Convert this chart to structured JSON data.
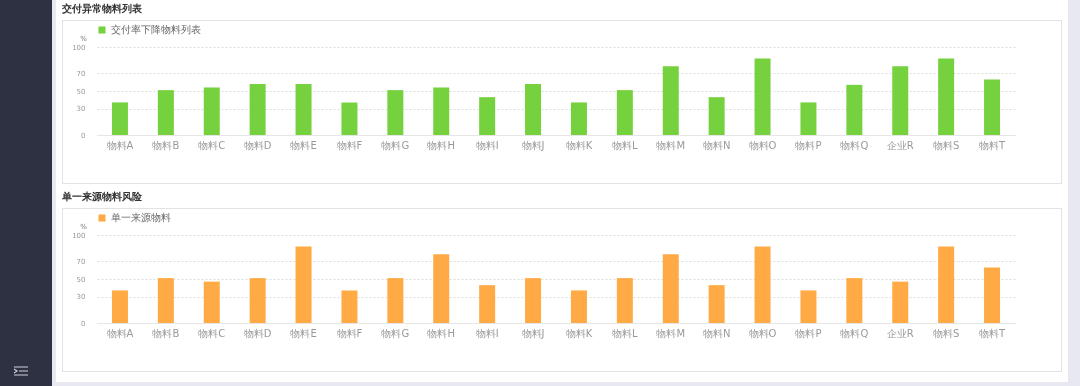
{
  "chart_data": [
    {
      "type": "bar",
      "title": "交付异常物料列表",
      "ylabel": "%",
      "categories": [
        "物料A",
        "物料B",
        "物料C",
        "物料D",
        "物料E",
        "物料F",
        "物料G",
        "物料H",
        "物料I",
        "物料J",
        "物料K",
        "物料L",
        "物料M",
        "物料N",
        "物料O",
        "物料P",
        "物料Q",
        "企业R",
        "物料S",
        "物料T"
      ],
      "series": [
        {
          "name": "交付率下降物料列表",
          "color": "#76d13e",
          "values": [
            37,
            51,
            54,
            58,
            58,
            37,
            51,
            54,
            43,
            58,
            37,
            51,
            78,
            43,
            87,
            37,
            57,
            78,
            87,
            63
          ]
        }
      ],
      "ylim": [
        0,
        100
      ],
      "yticks": [
        0,
        30,
        50,
        70,
        100
      ],
      "grid": "y",
      "legend": "top left"
    },
    {
      "type": "bar",
      "title": "单一来源物料风险",
      "ylabel": "%",
      "categories": [
        "物料A",
        "物料B",
        "物料C",
        "物料D",
        "物料E",
        "物料F",
        "物料G",
        "物料H",
        "物料I",
        "物料J",
        "物料K",
        "物料L",
        "物料M",
        "物料N",
        "物料O",
        "物料P",
        "物料Q",
        "企业R",
        "物料S",
        "物料T"
      ],
      "series": [
        {
          "name": "单一来源物料",
          "color": "#ffaa44",
          "values": [
            37,
            51,
            47,
            51,
            87,
            37,
            51,
            78,
            43,
            51,
            37,
            51,
            78,
            43,
            87,
            37,
            51,
            47,
            87,
            63
          ]
        }
      ],
      "ylim": [
        0,
        100
      ],
      "yticks": [
        0,
        30,
        50,
        70,
        100
      ],
      "grid": "y",
      "legend": "top left"
    }
  ]
}
